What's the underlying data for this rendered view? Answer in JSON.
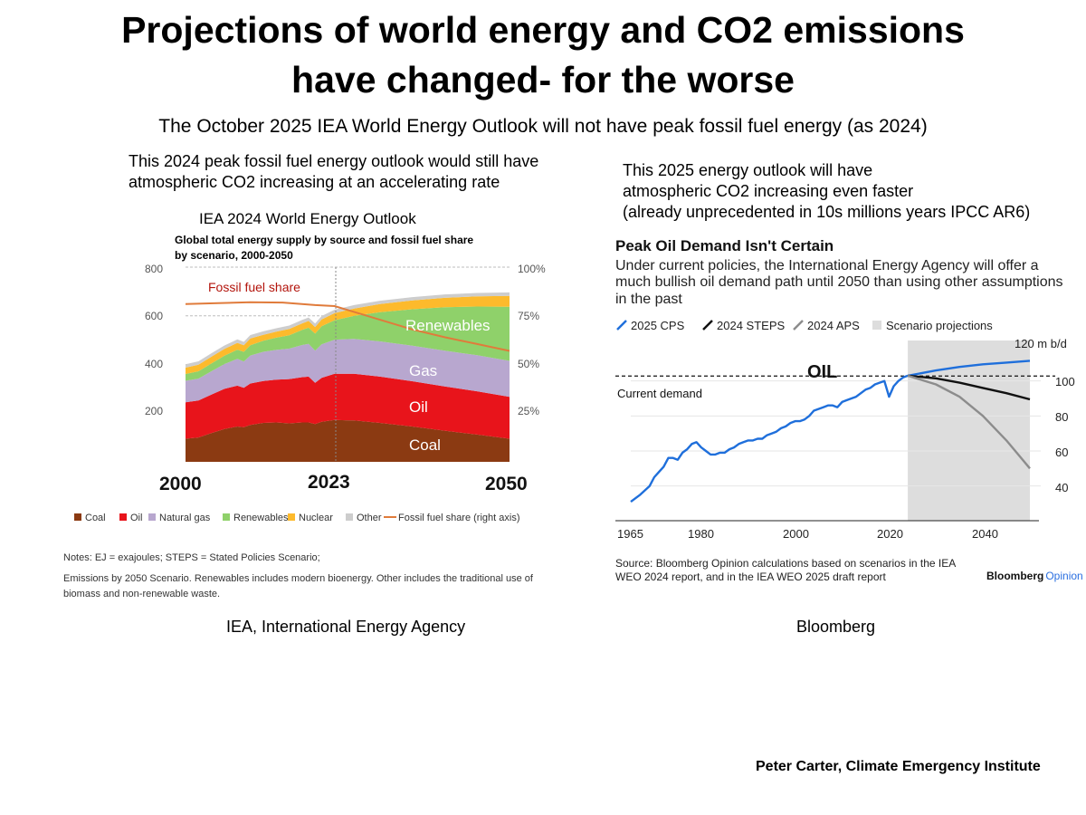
{
  "page": {
    "title_line1": "Projections of world energy and CO2 emissions",
    "title_line2": "have changed- for the worse",
    "subtitle": "The October 2025 IEA World Energy Outlook will not have peak fossil fuel energy (as 2024)",
    "left_note_line1": "This 2024 peak fossil fuel energy outlook would still have",
    "left_note_line2": "atmospheric CO2 increasing at an accelerating rate",
    "right_note_line1": "This 2025 energy outlook will have",
    "right_note_line2": "atmospheric CO2 increasing even faster",
    "right_note_line3": "(already unprecedented in 10s millions years IPCC AR6)",
    "left_source": "IEA, International Energy Agency",
    "right_source": "Bloomberg",
    "credit": "Peter Carter, Climate Emergency Institute"
  },
  "chart_data": [
    {
      "type": "area",
      "label_above": "IEA 2024 World Energy Outlook",
      "title": "Global total energy supply by source and fossil fuel share",
      "title_line2": "by scenario, 2000-2050",
      "y_ticks_left": [
        "800",
        "600",
        "400",
        "200"
      ],
      "y_ticks_right": [
        "100%",
        "75%",
        "50%",
        "25%"
      ],
      "ylim": [
        0,
        800
      ],
      "x_tick_labels": [
        "2000",
        "2023",
        "2050"
      ],
      "x": [
        2000,
        2002,
        2004,
        2006,
        2008,
        2009,
        2010,
        2012,
        2014,
        2016,
        2018,
        2019,
        2020,
        2021,
        2023,
        2026,
        2030,
        2035,
        2040,
        2045,
        2050
      ],
      "series": [
        {
          "name": "Coal",
          "color": "#8B3A12",
          "values": [
            95,
            100,
            118,
            135,
            145,
            142,
            152,
            160,
            162,
            158,
            162,
            162,
            155,
            165,
            172,
            170,
            160,
            145,
            128,
            112,
            95
          ]
        },
        {
          "name": "Oil",
          "color": "#E8141B",
          "values": [
            150,
            152,
            158,
            165,
            168,
            162,
            170,
            172,
            176,
            182,
            186,
            188,
            170,
            180,
            190,
            192,
            190,
            186,
            182,
            178,
            172
          ]
        },
        {
          "name": "Natural gas",
          "color": "#B8A7CF",
          "values": [
            88,
            90,
            96,
            102,
            110,
            108,
            115,
            120,
            122,
            125,
            132,
            135,
            132,
            138,
            140,
            143,
            145,
            146,
            147,
            148,
            148
          ]
        },
        {
          "name": "Renewables",
          "color": "#8FD16A",
          "values": [
            28,
            30,
            32,
            34,
            38,
            40,
            42,
            46,
            50,
            55,
            62,
            66,
            70,
            74,
            80,
            95,
            120,
            150,
            178,
            200,
            222
          ]
        },
        {
          "name": "Nuclear",
          "color": "#FDBA2C",
          "values": [
            26,
            27,
            28,
            28,
            28,
            27,
            28,
            24,
            25,
            26,
            27,
            28,
            27,
            28,
            29,
            30,
            33,
            36,
            39,
            42,
            45
          ]
        },
        {
          "name": "Other",
          "color": "#CDCDCD",
          "values": [
            14,
            14,
            14,
            14,
            14,
            14,
            14,
            14,
            14,
            14,
            14,
            14,
            14,
            14,
            14,
            14,
            14,
            14,
            14,
            14,
            14
          ]
        }
      ],
      "share_series": {
        "name": "Fossil fuel share (right axis)",
        "color": "#E07B3B",
        "years": [
          2000,
          2005,
          2010,
          2015,
          2020,
          2023,
          2026,
          2030,
          2035,
          2040,
          2045,
          2050
        ],
        "values_pct": [
          81,
          81.5,
          82,
          81.8,
          80.5,
          80,
          77,
          73,
          68,
          64,
          60.5,
          57
        ]
      },
      "legend": [
        "Coal",
        "Oil",
        "Natural gas",
        "Renewables",
        "Nuclear",
        "Other",
        "Fossil fuel share (right axis)"
      ],
      "annotations": {
        "share_label": "Fossil fuel share",
        "renewables": "Renewables",
        "gas": "Gas",
        "oil": "Oil",
        "coal": "Coal"
      },
      "notes_line1": "Notes: EJ = exajoules; STEPS = Stated Policies Scenario;",
      "notes_line2": "Emissions by 2050 Scenario. Renewables includes modern bioenergy. Other includes the traditional use of",
      "notes_line3": "biomass and non-renewable waste."
    },
    {
      "type": "line",
      "title": "Peak Oil Demand Isn't Certain",
      "subtitle_line1": "Under current policies, the International Energy Agency will offer a",
      "subtitle_line2": "much bullish oil demand path until 2050 than using other assumptions",
      "subtitle_line3": "in the past",
      "unit_label": "120 m b/d",
      "y_ticks": [
        "100",
        "80",
        "60",
        "40"
      ],
      "x_ticks": [
        "1965",
        "1980",
        "2000",
        "2020",
        "2040"
      ],
      "xlim": [
        1965,
        2050
      ],
      "ylim": [
        30,
        120
      ],
      "projection_span": [
        2024,
        2050
      ],
      "current_demand_value": 102.8,
      "annotation_oil": "OIL",
      "current_demand_label": "Current demand",
      "legend": [
        "2025 CPS",
        "2024 STEPS",
        "2024 APS",
        "Scenario projections"
      ],
      "series": [
        {
          "name": "history",
          "color": "#1F6FDB",
          "x": [
            1965,
            1967,
            1969,
            1970,
            1971,
            1972,
            1973,
            1974,
            1975,
            1976,
            1977,
            1978,
            1979,
            1980,
            1981,
            1982,
            1983,
            1984,
            1985,
            1986,
            1987,
            1988,
            1989,
            1990,
            1991,
            1992,
            1993,
            1994,
            1995,
            1996,
            1997,
            1998,
            1999,
            2000,
            2001,
            2002,
            2003,
            2004,
            2005,
            2006,
            2007,
            2008,
            2009,
            2010,
            2011,
            2012,
            2013,
            2014,
            2015,
            2016,
            2017,
            2018,
            2019,
            2020,
            2021,
            2022,
            2023,
            2024
          ],
          "y": [
            31,
            35,
            40,
            45,
            48,
            51,
            56,
            56,
            55,
            59,
            61,
            64,
            65,
            62,
            60,
            58,
            58,
            59,
            59,
            61,
            62,
            64,
            65,
            66,
            66,
            67,
            67,
            69,
            70,
            71,
            73,
            74,
            76,
            77,
            77,
            78,
            80,
            83,
            84,
            85,
            86,
            86,
            85,
            88,
            89,
            90,
            91,
            93,
            95,
            96,
            98,
            99,
            100,
            91,
            97,
            100,
            102,
            103
          ]
        },
        {
          "name": "2025 CPS",
          "color": "#1F6FDB",
          "x": [
            2024,
            2030,
            2035,
            2040,
            2045,
            2050
          ],
          "y": [
            103,
            106,
            108,
            109.5,
            110.5,
            111.5
          ]
        },
        {
          "name": "2024 STEPS",
          "color": "#111111",
          "x": [
            2024,
            2030,
            2035,
            2040,
            2045,
            2050
          ],
          "y": [
            103,
            101.5,
            99,
            96,
            93,
            89.5
          ]
        },
        {
          "name": "2024 APS",
          "color": "#8C8C8C",
          "x": [
            2024,
            2030,
            2035,
            2040,
            2045,
            2050
          ],
          "y": [
            103,
            98,
            91,
            80,
            66,
            50
          ]
        }
      ],
      "source_line1": "Source: Bloomberg Opinion calculations based on scenarios in the IEA",
      "source_line2": "WEO 2024 report, and in the IEA WEO 2025 draft report",
      "brand_part1": "Bloomberg",
      "brand_part2": "Opinion"
    }
  ]
}
